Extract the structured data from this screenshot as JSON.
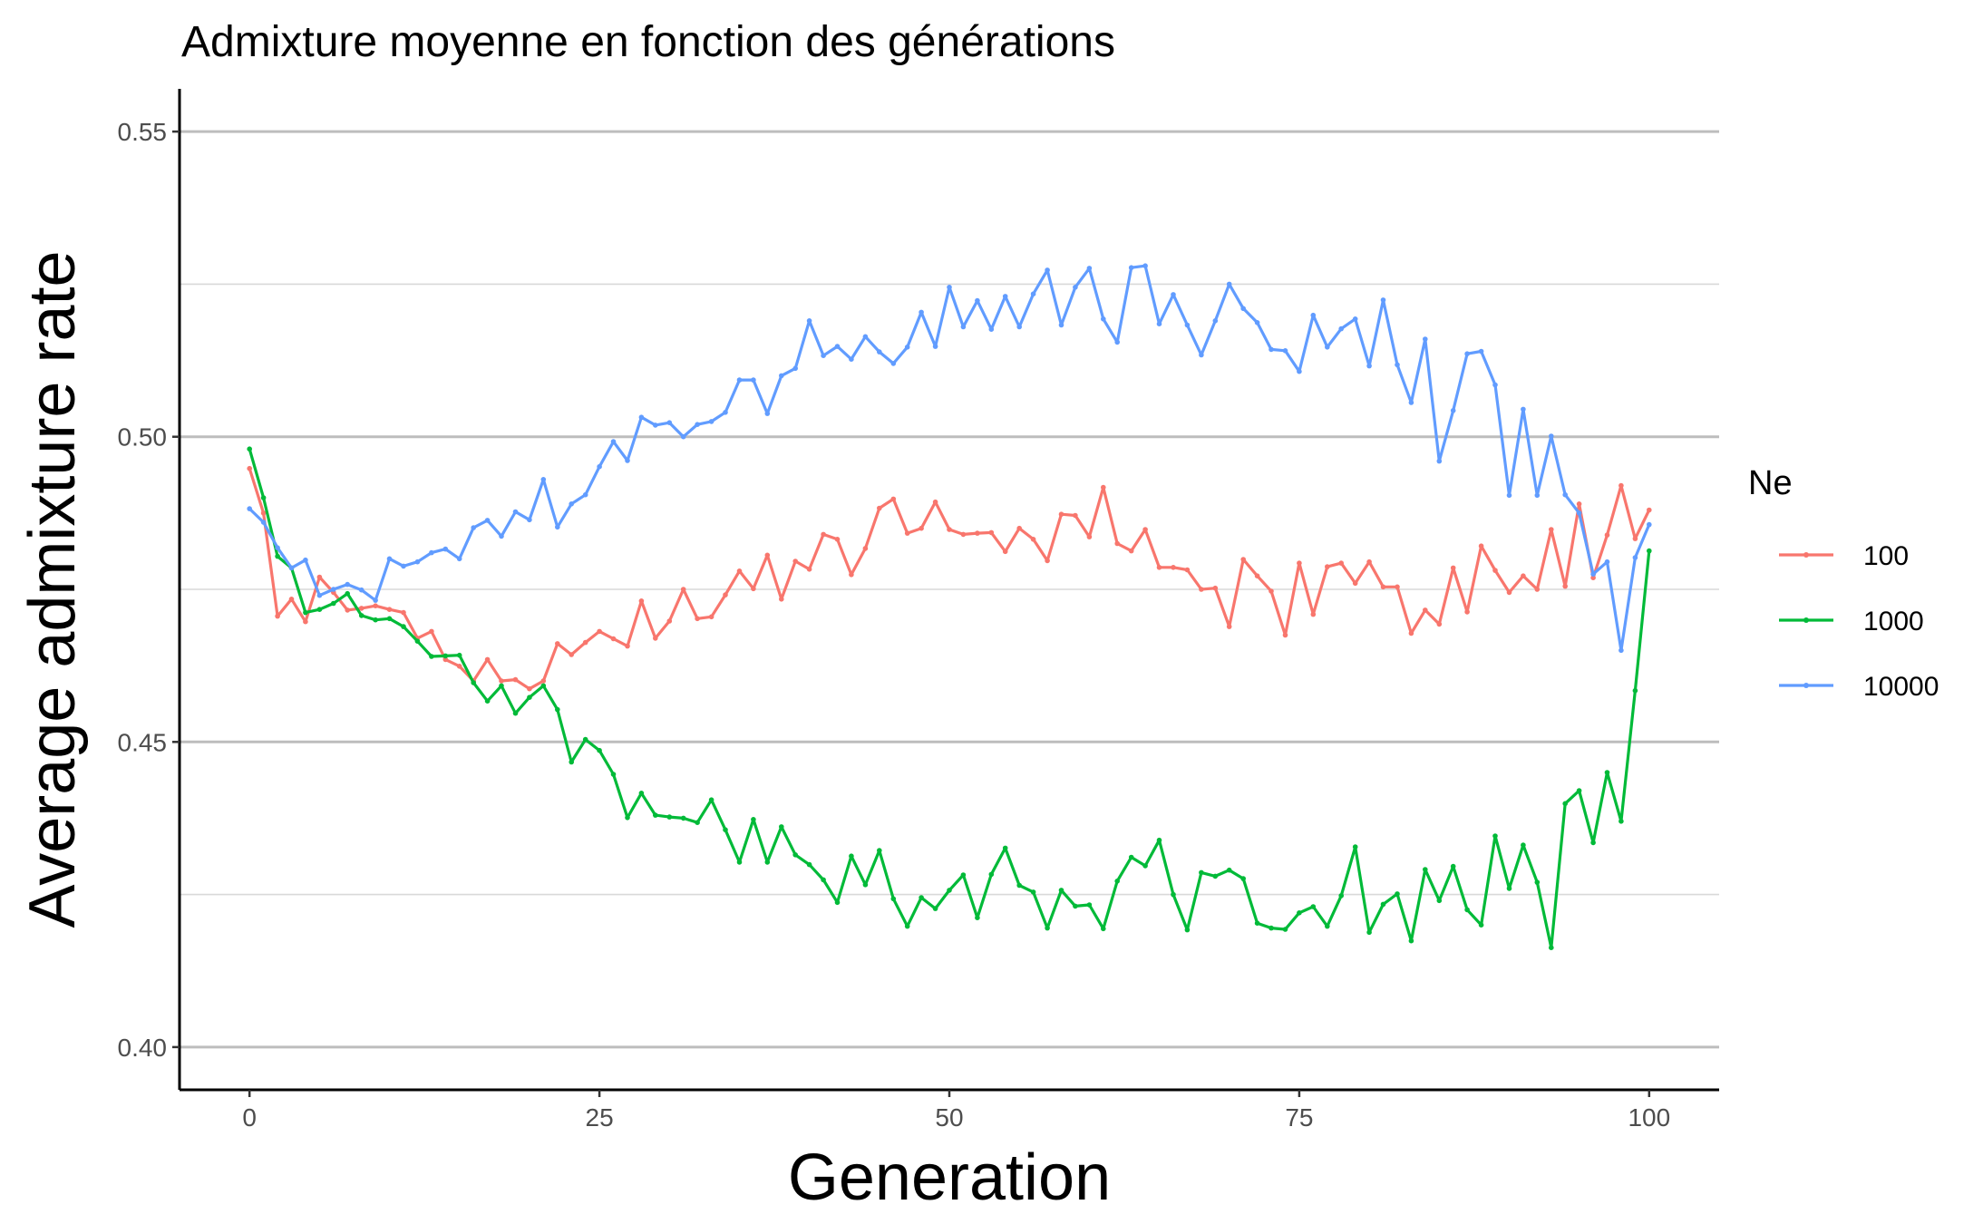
{
  "chart_data": {
    "type": "line",
    "title": "Admixture moyenne en fonction des générations",
    "xlabel": "Generation",
    "ylabel": "Average admixture rate",
    "xlim": [
      -5,
      105
    ],
    "ylim": [
      0.393,
      0.557
    ],
    "x_ticks": [
      0,
      25,
      50,
      75,
      100
    ],
    "x_tick_labels": [
      "0",
      "25",
      "50",
      "75",
      "100"
    ],
    "y_ticks": [
      0.4,
      0.45,
      0.5,
      0.55
    ],
    "y_tick_labels": [
      "0.40",
      "0.45",
      "0.50",
      "0.55"
    ],
    "y_minor_ticks": [
      0.425,
      0.475,
      0.525
    ],
    "grid": "horizontal",
    "legend": {
      "title": "Ne",
      "position": "right"
    },
    "series": [
      {
        "name": "100",
        "color": "#F8766D",
        "x_start": 0,
        "x_step": 1,
        "values": [
          0.4948,
          0.4875,
          0.4706,
          0.4734,
          0.4697,
          0.477,
          0.4745,
          0.4716,
          0.4719,
          0.4723,
          0.4717,
          0.4712,
          0.467,
          0.4681,
          0.4635,
          0.4624,
          0.46,
          0.4635,
          0.46,
          0.4602,
          0.4587,
          0.46,
          0.4661,
          0.4643,
          0.4663,
          0.4681,
          0.4669,
          0.4657,
          0.4731,
          0.467,
          0.4698,
          0.475,
          0.4702,
          0.4705,
          0.4741,
          0.478,
          0.4751,
          0.4806,
          0.4734,
          0.4796,
          0.4783,
          0.484,
          0.4832,
          0.4774,
          0.4817,
          0.4883,
          0.4898,
          0.4842,
          0.485,
          0.4893,
          0.4848,
          0.484,
          0.4842,
          0.4843,
          0.4812,
          0.485,
          0.4832,
          0.4797,
          0.4873,
          0.4871,
          0.4836,
          0.4917,
          0.4825,
          0.4813,
          0.4848,
          0.4786,
          0.4786,
          0.4782,
          0.475,
          0.4752,
          0.4689,
          0.4799,
          0.4772,
          0.4747,
          0.4675,
          0.4793,
          0.4709,
          0.4787,
          0.4793,
          0.476,
          0.4795,
          0.4754,
          0.4754,
          0.4678,
          0.4716,
          0.4693,
          0.4785,
          0.4713,
          0.4821,
          0.4781,
          0.4745,
          0.4772,
          0.475,
          0.4848,
          0.4755,
          0.489,
          0.4769,
          0.4839,
          0.492,
          0.4833,
          0.488
        ]
      },
      {
        "name": "1000",
        "color": "#00BA38",
        "x_start": 0,
        "x_step": 1,
        "values": [
          0.498,
          0.49,
          0.4804,
          0.4785,
          0.4712,
          0.4717,
          0.4727,
          0.4743,
          0.4707,
          0.47,
          0.4702,
          0.4689,
          0.4665,
          0.464,
          0.4641,
          0.4642,
          0.4597,
          0.4567,
          0.4592,
          0.4547,
          0.4573,
          0.4592,
          0.4553,
          0.4467,
          0.4504,
          0.4486,
          0.4447,
          0.4376,
          0.4416,
          0.438,
          0.4377,
          0.4375,
          0.4368,
          0.4405,
          0.4356,
          0.4303,
          0.4373,
          0.4303,
          0.4361,
          0.4315,
          0.4299,
          0.4274,
          0.4237,
          0.4313,
          0.4266,
          0.4322,
          0.4243,
          0.4198,
          0.4245,
          0.4227,
          0.4257,
          0.4282,
          0.4212,
          0.4283,
          0.4326,
          0.4265,
          0.4254,
          0.4195,
          0.4257,
          0.4231,
          0.4233,
          0.4194,
          0.4272,
          0.4311,
          0.4297,
          0.4339,
          0.425,
          0.4192,
          0.4286,
          0.428,
          0.429,
          0.4276,
          0.4203,
          0.4195,
          0.4193,
          0.422,
          0.423,
          0.4198,
          0.4248,
          0.4328,
          0.4188,
          0.4234,
          0.4251,
          0.4174,
          0.4291,
          0.424,
          0.4296,
          0.4225,
          0.42,
          0.4346,
          0.426,
          0.4331,
          0.427,
          0.4163,
          0.4399,
          0.442,
          0.4335,
          0.445,
          0.437,
          0.4584,
          0.4813
        ]
      },
      {
        "name": "10000",
        "color": "#619CFF",
        "x_start": 0,
        "x_step": 1,
        "values": [
          0.4882,
          0.486,
          0.4818,
          0.4785,
          0.4798,
          0.474,
          0.475,
          0.4758,
          0.4749,
          0.4732,
          0.48,
          0.4788,
          0.4795,
          0.481,
          0.4816,
          0.48,
          0.4851,
          0.4863,
          0.4837,
          0.4877,
          0.4864,
          0.493,
          0.4852,
          0.489,
          0.4905,
          0.4951,
          0.4992,
          0.4961,
          0.5032,
          0.5019,
          0.5023,
          0.5,
          0.502,
          0.5025,
          0.504,
          0.5093,
          0.5093,
          0.5038,
          0.51,
          0.5112,
          0.519,
          0.5133,
          0.5148,
          0.5127,
          0.5164,
          0.5139,
          0.512,
          0.5147,
          0.5204,
          0.5148,
          0.5245,
          0.518,
          0.5223,
          0.5176,
          0.523,
          0.518,
          0.5234,
          0.5273,
          0.5183,
          0.5245,
          0.5276,
          0.5193,
          0.5155,
          0.5277,
          0.528,
          0.5185,
          0.5233,
          0.5183,
          0.5134,
          0.519,
          0.525,
          0.521,
          0.5187,
          0.5143,
          0.5141,
          0.5107,
          0.5199,
          0.5147,
          0.5177,
          0.5193,
          0.5116,
          0.5224,
          0.5118,
          0.5056,
          0.516,
          0.496,
          0.5043,
          0.5136,
          0.514,
          0.5085,
          0.4904,
          0.5045,
          0.4904,
          0.5001,
          0.4905,
          0.4875,
          0.4775,
          0.4795,
          0.465,
          0.4802,
          0.4856
        ]
      }
    ]
  }
}
